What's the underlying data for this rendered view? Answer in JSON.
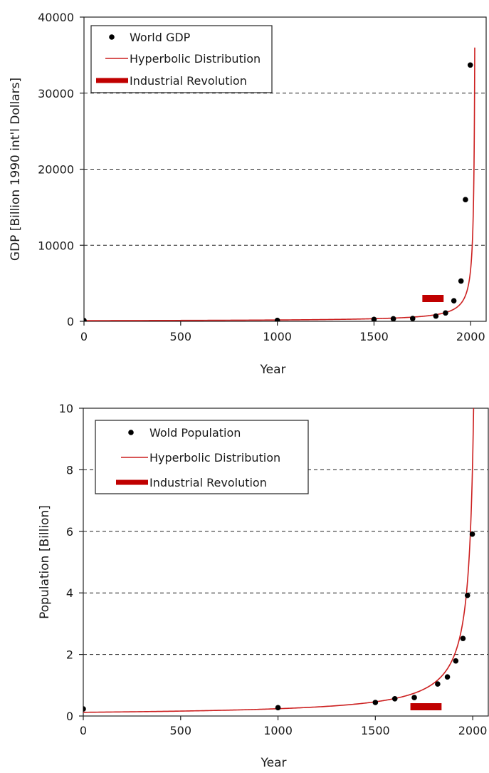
{
  "chart_data": [
    {
      "type": "scatter",
      "title": "",
      "xlabel": "Year",
      "ylabel": "GDP [Billion 1990 int'l Dollars]",
      "xlim": [
        0,
        2080
      ],
      "ylim": [
        0,
        40000
      ],
      "x_ticks": [
        0,
        500,
        1000,
        1500,
        2000
      ],
      "x_tick_labels": [
        "0",
        "500",
        "1000",
        "1500",
        "2000"
      ],
      "y_ticks": [
        0,
        10000,
        20000,
        30000,
        40000
      ],
      "y_tick_labels": [
        "0",
        "10000",
        "20000",
        "30000",
        "40000"
      ],
      "grid": "horizontal dashed at 10000, 20000, 30000",
      "legend_position": "top-left",
      "legend": [
        {
          "label": "World GDP",
          "marker": "dot",
          "color": "#000000"
        },
        {
          "label": "Hyperbolic Distribution",
          "marker": "line",
          "color": "#cc1f1f"
        },
        {
          "label": "Industrial Revolution",
          "marker": "thick-bar",
          "color": "#c00000"
        }
      ],
      "series": [
        {
          "name": "World GDP",
          "kind": "points",
          "color": "#000000",
          "points": [
            [
              0,
              100
            ],
            [
              1000,
              120
            ],
            [
              1500,
              250
            ],
            [
              1600,
              330
            ],
            [
              1700,
              370
            ],
            [
              1820,
              690
            ],
            [
              1870,
              1100
            ],
            [
              1913,
              2700
            ],
            [
              1950,
              5300
            ],
            [
              1973,
              16000
            ],
            [
              1998,
              33700
            ]
          ]
        },
        {
          "name": "Hyperbolic Distribution",
          "kind": "curve",
          "color": "#cc1f1f",
          "formula": "y = C / (T0 - x)",
          "C": 180000,
          "T0": 2026,
          "x_range": [
            0,
            2021
          ]
        },
        {
          "name": "Industrial Revolution",
          "kind": "band",
          "color": "#c00000",
          "x_start": 1750,
          "x_end": 1860,
          "y": 3000
        }
      ]
    },
    {
      "type": "scatter",
      "title": "",
      "xlabel": "Year",
      "ylabel": "Population [Billion]",
      "xlim": [
        0,
        2080
      ],
      "ylim": [
        0,
        10
      ],
      "x_ticks": [
        0,
        500,
        1000,
        1500,
        2000
      ],
      "x_tick_labels": [
        "0",
        "500",
        "1000",
        "1500",
        "2000"
      ],
      "y_ticks": [
        0,
        2,
        4,
        6,
        8,
        10
      ],
      "y_tick_labels": [
        "0",
        "2",
        "4",
        "6",
        "8",
        "10"
      ],
      "grid": "horizontal dashed at 2, 4, 6, 8",
      "legend_position": "top-left",
      "legend": [
        {
          "label": "Wold Population",
          "marker": "dot",
          "color": "#000000"
        },
        {
          "label": "Hyperbolic Distribution",
          "marker": "line",
          "color": "#cc1f1f"
        },
        {
          "label": "Industrial Revolution",
          "marker": "thick-bar",
          "color": "#c00000"
        }
      ],
      "series": [
        {
          "name": "Wold Population",
          "kind": "points",
          "color": "#000000",
          "points": [
            [
              0,
              0.23
            ],
            [
              1000,
              0.27
            ],
            [
              1500,
              0.44
            ],
            [
              1600,
              0.56
            ],
            [
              1700,
              0.6
            ],
            [
              1820,
              1.04
            ],
            [
              1870,
              1.27
            ],
            [
              1913,
              1.79
            ],
            [
              1950,
              2.52
            ],
            [
              1973,
              3.92
            ],
            [
              1998,
              5.91
            ]
          ]
        },
        {
          "name": "Hyperbolic Distribution",
          "kind": "curve",
          "color": "#cc1f1f",
          "formula": "y = C / (T0 - x)",
          "C": 244,
          "T0": 2029,
          "x_range": [
            0,
            2004.6
          ]
        },
        {
          "name": "Industrial Revolution",
          "kind": "band",
          "color": "#c00000",
          "x_start": 1680,
          "x_end": 1840,
          "y": 0.3
        }
      ]
    }
  ]
}
